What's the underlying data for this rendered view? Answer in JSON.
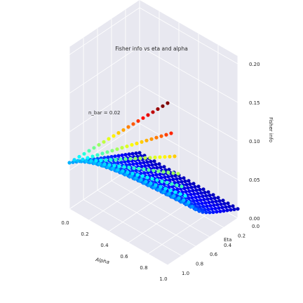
{
  "chart_data": {
    "type": "scatter",
    "projection": "3d",
    "title": "Fisher info vs eta and alpha",
    "annotation": "n_bar = 0.02",
    "xlabel": "Alpha",
    "ylabel": "Eta",
    "zlabel": "Fisher info",
    "xlim": [
      0.0,
      1.0
    ],
    "ylim": [
      0.0,
      1.0
    ],
    "zlim": [
      0.0,
      0.2
    ],
    "x_ticks": [
      "0.0",
      "0.2",
      "0.4",
      "0.6",
      "0.8",
      "1.0"
    ],
    "y_ticks": [
      "0.0",
      "0.2",
      "0.4",
      "0.6",
      "0.8",
      "1.0"
    ],
    "z_ticks": [
      "0.00",
      "0.05",
      "0.10",
      "0.15",
      "0.20"
    ],
    "grid": true,
    "colormap": "jet",
    "pane_color": "#e8e8f0",
    "grid_color": "#ffffff",
    "series": [
      {
        "alpha_values": [
          0.0,
          0.05,
          0.1,
          0.15,
          0.2,
          0.25,
          0.3,
          0.35,
          0.4,
          0.45,
          0.5,
          0.55,
          0.6,
          0.65,
          0.7,
          0.75,
          0.8,
          0.85,
          0.9,
          0.95,
          1.0
        ],
        "eta_values": [
          0.0,
          0.05,
          0.1,
          0.15,
          0.2,
          0.25,
          0.3,
          0.35,
          0.4,
          0.45,
          0.5,
          0.55,
          0.6,
          0.65,
          0.7,
          0.75,
          0.8,
          0.85,
          0.9,
          0.95,
          1.0
        ],
        "surface": "fisher = eta*0.06 + 0.012*(1-eta) + alpha*eta^6*0.15 (approx. read from plot); max ~0.21 at alpha=1, eta=1"
      }
    ]
  }
}
